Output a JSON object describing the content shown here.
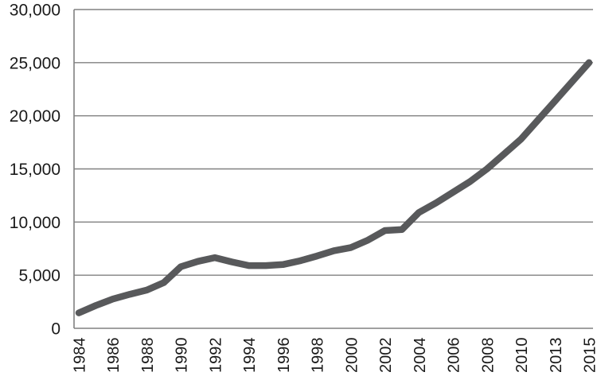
{
  "chart_data": {
    "type": "line",
    "title": "",
    "xlabel": "",
    "ylabel": "",
    "x_categories": [
      1984,
      1985,
      1986,
      1987,
      1988,
      1989,
      1990,
      1991,
      1992,
      1993,
      1994,
      1995,
      1996,
      1997,
      1998,
      1999,
      2000,
      2001,
      2002,
      2003,
      2004,
      2005,
      2006,
      2007,
      2008,
      2009,
      2010,
      2012,
      2013,
      2014,
      2015
    ],
    "values": [
      1450,
      2150,
      2750,
      3200,
      3600,
      4300,
      5800,
      6300,
      6650,
      6250,
      5900,
      5900,
      6000,
      6350,
      6800,
      7300,
      7600,
      8300,
      9200,
      9300,
      10900,
      11800,
      12800,
      13800,
      15000,
      16400,
      17800,
      19600,
      21400,
      23200,
      25000
    ],
    "x_tick_indices": [
      0,
      2,
      4,
      6,
      8,
      10,
      12,
      14,
      16,
      18,
      20,
      22,
      24,
      26,
      28,
      30
    ],
    "x_tick_labels": [
      "1984",
      "1986",
      "1988",
      "1990",
      "1992",
      "1994",
      "1996",
      "1998",
      "2000",
      "2002",
      "2004",
      "2006",
      "2008",
      "2010",
      "2013",
      "2015"
    ],
    "y_ticks": [
      0,
      5000,
      10000,
      15000,
      20000,
      25000,
      30000
    ],
    "y_tick_labels": [
      "0",
      "5,000",
      "10,000",
      "15,000",
      "20,000",
      "25,000",
      "30,000"
    ],
    "ylim": [
      0,
      30000
    ],
    "grid": "horizontal-only",
    "legend": "none",
    "line_color": "#58595b",
    "grid_color": "#808080",
    "label_color": "#1a1a1a",
    "background_color": "#ffffff"
  }
}
